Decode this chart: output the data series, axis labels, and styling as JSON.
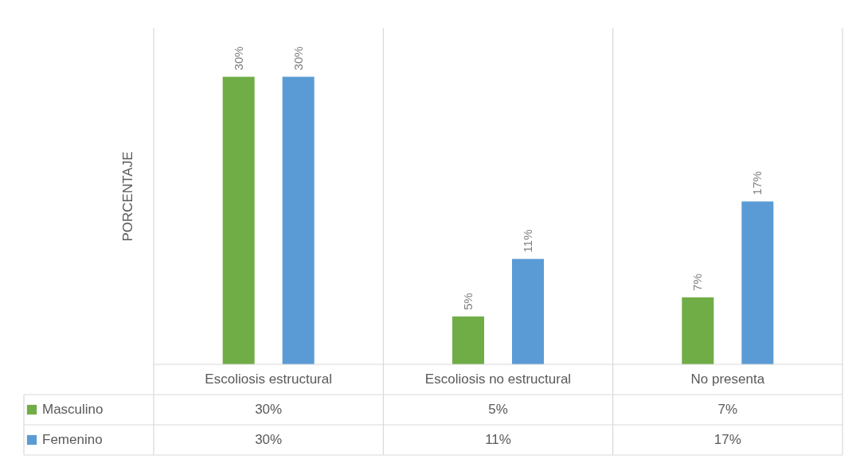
{
  "chart_data": {
    "type": "bar",
    "ylabel": "PORCENTAJE",
    "categories": [
      "Escoliosis estructural",
      "Escoliosis no estructural",
      "No presenta"
    ],
    "series": [
      {
        "name": "Masculino",
        "color": "#70ad47",
        "values": [
          30,
          5,
          7
        ],
        "value_labels": [
          "30%",
          "5%",
          "7%"
        ]
      },
      {
        "name": "Femenino",
        "color": "#5b9bd5",
        "values": [
          30,
          11,
          17
        ],
        "value_labels": [
          "30%",
          "11%",
          "17%"
        ]
      }
    ],
    "legend": "bottom"
  }
}
